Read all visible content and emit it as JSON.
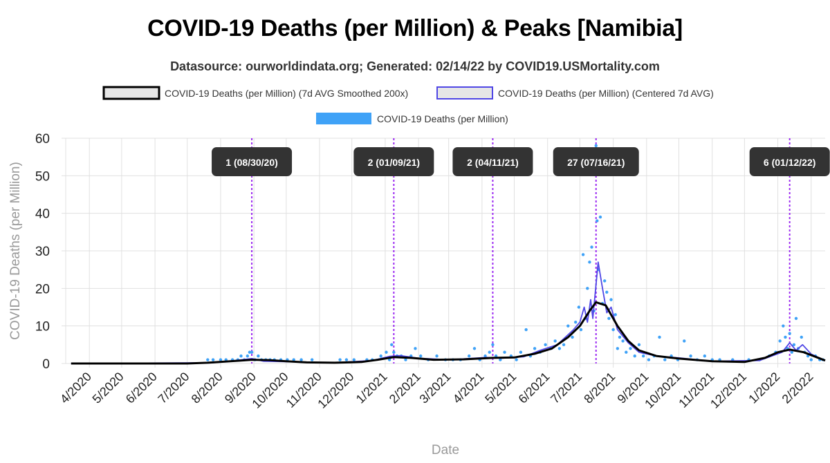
{
  "page": {
    "title": "COVID-19 Deaths (per Million) & Peaks [Namibia]",
    "subtitle": "Datasource: ourworldindata.org; Generated: 02/14/22 by COVID19.USMortality.com"
  },
  "chart_data": {
    "type": "line",
    "ylabel": "COVID-19 Deaths (per Million)",
    "xlabel": "Date",
    "ylim": [
      0,
      60
    ],
    "y_ticks": [
      0,
      10,
      20,
      30,
      40,
      50,
      60
    ],
    "x_range": [
      "2020-03-10",
      "2022-02-14"
    ],
    "x_ticks": [
      {
        "date": "2020-04-01",
        "label": "4/2020"
      },
      {
        "date": "2020-05-01",
        "label": "5/2020"
      },
      {
        "date": "2020-06-01",
        "label": "6/2020"
      },
      {
        "date": "2020-07-01",
        "label": "7/2020"
      },
      {
        "date": "2020-08-01",
        "label": "8/2020"
      },
      {
        "date": "2020-09-01",
        "label": "9/2020"
      },
      {
        "date": "2020-10-01",
        "label": "10/2020"
      },
      {
        "date": "2020-11-01",
        "label": "11/2020"
      },
      {
        "date": "2020-12-01",
        "label": "12/2020"
      },
      {
        "date": "2021-01-01",
        "label": "1/2021"
      },
      {
        "date": "2021-02-01",
        "label": "2/2021"
      },
      {
        "date": "2021-03-01",
        "label": "3/2021"
      },
      {
        "date": "2021-04-01",
        "label": "4/2021"
      },
      {
        "date": "2021-05-01",
        "label": "5/2021"
      },
      {
        "date": "2021-06-01",
        "label": "6/2021"
      },
      {
        "date": "2021-07-01",
        "label": "7/2021"
      },
      {
        "date": "2021-08-01",
        "label": "8/2021"
      },
      {
        "date": "2021-09-01",
        "label": "9/2021"
      },
      {
        "date": "2021-10-01",
        "label": "10/2021"
      },
      {
        "date": "2021-11-01",
        "label": "11/2021"
      },
      {
        "date": "2021-12-01",
        "label": "12/2021"
      },
      {
        "date": "2022-01-01",
        "label": "1/2022"
      },
      {
        "date": "2022-02-01",
        "label": "2/2022"
      }
    ],
    "grid": true,
    "legend_position": "top",
    "series": [
      {
        "name": "COVID-19 Deaths (per Million) (7d AVG Smoothed 200x)",
        "style": "line",
        "color": "#000000",
        "points": [
          [
            "2020-03-15",
            0
          ],
          [
            "2020-07-01",
            0
          ],
          [
            "2020-07-20",
            0.2
          ],
          [
            "2020-08-05",
            0.5
          ],
          [
            "2020-08-20",
            0.8
          ],
          [
            "2020-08-30",
            1.0
          ],
          [
            "2020-09-15",
            0.9
          ],
          [
            "2020-10-01",
            0.6
          ],
          [
            "2020-10-20",
            0.3
          ],
          [
            "2020-11-15",
            0.2
          ],
          [
            "2020-12-10",
            0.4
          ],
          [
            "2020-12-25",
            1.0
          ],
          [
            "2021-01-09",
            1.7
          ],
          [
            "2021-01-25",
            1.5
          ],
          [
            "2021-02-15",
            1.0
          ],
          [
            "2021-03-15",
            1.1
          ],
          [
            "2021-04-11",
            1.5
          ],
          [
            "2021-05-01",
            1.6
          ],
          [
            "2021-05-20",
            2.6
          ],
          [
            "2021-06-05",
            4.0
          ],
          [
            "2021-06-20",
            7.0
          ],
          [
            "2021-07-01",
            10.0
          ],
          [
            "2021-07-10",
            14.0
          ],
          [
            "2021-07-16",
            16.3
          ],
          [
            "2021-07-25",
            15.5
          ],
          [
            "2021-08-05",
            10.0
          ],
          [
            "2021-08-15",
            6.0
          ],
          [
            "2021-08-25",
            3.5
          ],
          [
            "2021-09-10",
            2.0
          ],
          [
            "2021-10-01",
            1.3
          ],
          [
            "2021-11-01",
            0.6
          ],
          [
            "2021-12-01",
            0.4
          ],
          [
            "2021-12-20",
            1.5
          ],
          [
            "2022-01-01",
            3.0
          ],
          [
            "2022-01-12",
            3.7
          ],
          [
            "2022-01-25",
            3.0
          ],
          [
            "2022-02-14",
            0.8
          ]
        ]
      },
      {
        "name": "COVID-19 Deaths (per Million) (Centered 7d AVG)",
        "style": "line",
        "color": "#4f46e5",
        "points": [
          [
            "2020-03-15",
            0
          ],
          [
            "2020-07-25",
            0.2
          ],
          [
            "2020-08-15",
            0.8
          ],
          [
            "2020-08-30",
            1.3
          ],
          [
            "2020-09-10",
            0.6
          ],
          [
            "2020-10-01",
            0.5
          ],
          [
            "2020-11-15",
            0.2
          ],
          [
            "2020-12-20",
            0.8
          ],
          [
            "2021-01-05",
            1.9
          ],
          [
            "2021-01-15",
            2.1
          ],
          [
            "2021-02-01",
            1.4
          ],
          [
            "2021-03-01",
            1.0
          ],
          [
            "2021-04-05",
            1.6
          ],
          [
            "2021-04-20",
            1.4
          ],
          [
            "2021-05-10",
            1.8
          ],
          [
            "2021-05-25",
            3.5
          ],
          [
            "2021-06-10",
            5.0
          ],
          [
            "2021-06-25",
            9.0
          ],
          [
            "2021-07-01",
            11.0
          ],
          [
            "2021-07-05",
            15.0
          ],
          [
            "2021-07-08",
            11.0
          ],
          [
            "2021-07-11",
            17.0
          ],
          [
            "2021-07-13",
            12.0
          ],
          [
            "2021-07-18",
            27.0
          ],
          [
            "2021-07-22",
            20.0
          ],
          [
            "2021-07-26",
            13.5
          ],
          [
            "2021-07-30",
            15.0
          ],
          [
            "2021-08-05",
            9.0
          ],
          [
            "2021-08-15",
            5.5
          ],
          [
            "2021-08-25",
            3.0
          ],
          [
            "2021-09-10",
            2.0
          ],
          [
            "2021-10-01",
            1.5
          ],
          [
            "2021-11-01",
            0.6
          ],
          [
            "2021-12-15",
            0.8
          ],
          [
            "2022-01-05",
            3.0
          ],
          [
            "2022-01-12",
            5.5
          ],
          [
            "2022-01-18",
            3.5
          ],
          [
            "2022-01-24",
            5.0
          ],
          [
            "2022-02-01",
            2.5
          ],
          [
            "2022-02-14",
            0.8
          ]
        ]
      },
      {
        "name": "COVID-19 Deaths (per Million)",
        "style": "scatter",
        "color": "#3fa2f7",
        "points": [
          [
            "2020-07-20",
            1
          ],
          [
            "2020-07-25",
            1
          ],
          [
            "2020-08-01",
            1
          ],
          [
            "2020-08-06",
            1
          ],
          [
            "2020-08-12",
            1
          ],
          [
            "2020-08-17",
            1
          ],
          [
            "2020-08-20",
            2
          ],
          [
            "2020-08-23",
            1
          ],
          [
            "2020-08-26",
            2
          ],
          [
            "2020-08-28",
            3
          ],
          [
            "2020-08-30",
            3
          ],
          [
            "2020-09-02",
            1
          ],
          [
            "2020-09-05",
            2
          ],
          [
            "2020-09-08",
            1
          ],
          [
            "2020-09-12",
            1
          ],
          [
            "2020-09-16",
            1
          ],
          [
            "2020-09-20",
            1
          ],
          [
            "2020-09-26",
            1
          ],
          [
            "2020-10-02",
            1
          ],
          [
            "2020-10-08",
            1
          ],
          [
            "2020-10-15",
            1
          ],
          [
            "2020-10-25",
            1
          ],
          [
            "2020-11-20",
            1
          ],
          [
            "2020-11-26",
            1
          ],
          [
            "2020-12-03",
            1
          ],
          [
            "2020-12-15",
            1
          ],
          [
            "2020-12-20",
            1
          ],
          [
            "2020-12-28",
            2
          ],
          [
            "2021-01-02",
            3
          ],
          [
            "2021-01-05",
            1
          ],
          [
            "2021-01-07",
            5
          ],
          [
            "2021-01-09",
            3
          ],
          [
            "2021-01-12",
            2
          ],
          [
            "2021-01-16",
            2
          ],
          [
            "2021-01-20",
            1
          ],
          [
            "2021-01-25",
            2
          ],
          [
            "2021-01-29",
            4
          ],
          [
            "2021-02-03",
            2
          ],
          [
            "2021-02-10",
            1
          ],
          [
            "2021-02-18",
            2
          ],
          [
            "2021-02-26",
            1
          ],
          [
            "2021-03-05",
            1
          ],
          [
            "2021-03-12",
            1
          ],
          [
            "2021-03-20",
            2
          ],
          [
            "2021-03-25",
            4
          ],
          [
            "2021-03-30",
            1
          ],
          [
            "2021-04-04",
            2
          ],
          [
            "2021-04-08",
            3
          ],
          [
            "2021-04-11",
            5
          ],
          [
            "2021-04-14",
            2
          ],
          [
            "2021-04-18",
            1
          ],
          [
            "2021-04-22",
            3
          ],
          [
            "2021-04-28",
            2
          ],
          [
            "2021-05-03",
            1
          ],
          [
            "2021-05-07",
            3
          ],
          [
            "2021-05-12",
            9
          ],
          [
            "2021-05-16",
            2
          ],
          [
            "2021-05-20",
            4
          ],
          [
            "2021-05-25",
            3
          ],
          [
            "2021-05-30",
            5
          ],
          [
            "2021-06-04",
            4
          ],
          [
            "2021-06-08",
            6
          ],
          [
            "2021-06-12",
            4
          ],
          [
            "2021-06-16",
            5
          ],
          [
            "2021-06-20",
            10
          ],
          [
            "2021-06-24",
            7
          ],
          [
            "2021-06-27",
            11
          ],
          [
            "2021-06-30",
            15
          ],
          [
            "2021-07-02",
            9
          ],
          [
            "2021-07-04",
            29
          ],
          [
            "2021-07-06",
            12
          ],
          [
            "2021-07-08",
            20
          ],
          [
            "2021-07-10",
            27
          ],
          [
            "2021-07-12",
            31
          ],
          [
            "2021-07-14",
            14
          ],
          [
            "2021-07-16",
            58
          ],
          [
            "2021-07-17",
            38
          ],
          [
            "2021-07-18",
            25
          ],
          [
            "2021-07-20",
            39
          ],
          [
            "2021-07-22",
            16
          ],
          [
            "2021-07-24",
            22
          ],
          [
            "2021-07-26",
            19
          ],
          [
            "2021-07-28",
            12
          ],
          [
            "2021-07-30",
            17
          ],
          [
            "2021-08-01",
            9
          ],
          [
            "2021-08-03",
            13
          ],
          [
            "2021-08-05",
            4
          ],
          [
            "2021-08-07",
            7
          ],
          [
            "2021-08-10",
            6
          ],
          [
            "2021-08-13",
            3
          ],
          [
            "2021-08-17",
            4
          ],
          [
            "2021-08-21",
            2
          ],
          [
            "2021-08-25",
            5
          ],
          [
            "2021-08-29",
            2
          ],
          [
            "2021-09-03",
            1
          ],
          [
            "2021-09-08",
            2
          ],
          [
            "2021-09-13",
            7
          ],
          [
            "2021-09-18",
            1
          ],
          [
            "2021-09-24",
            2
          ],
          [
            "2021-09-30",
            1
          ],
          [
            "2021-10-06",
            6
          ],
          [
            "2021-10-12",
            2
          ],
          [
            "2021-10-18",
            1
          ],
          [
            "2021-10-25",
            2
          ],
          [
            "2021-11-01",
            1
          ],
          [
            "2021-11-08",
            1
          ],
          [
            "2021-11-20",
            1
          ],
          [
            "2021-12-05",
            1
          ],
          [
            "2021-12-15",
            1
          ],
          [
            "2021-12-24",
            2
          ],
          [
            "2021-12-30",
            3
          ],
          [
            "2022-01-03",
            6
          ],
          [
            "2022-01-06",
            10
          ],
          [
            "2022-01-08",
            7
          ],
          [
            "2022-01-10",
            4
          ],
          [
            "2022-01-12",
            8
          ],
          [
            "2022-01-14",
            3
          ],
          [
            "2022-01-16",
            5
          ],
          [
            "2022-01-18",
            12
          ],
          [
            "2022-01-20",
            4
          ],
          [
            "2022-01-23",
            7
          ],
          [
            "2022-01-26",
            3
          ],
          [
            "2022-01-29",
            2
          ],
          [
            "2022-02-01",
            1
          ],
          [
            "2022-02-05",
            2
          ],
          [
            "2022-02-09",
            1
          ],
          [
            "2022-02-12",
            1
          ]
        ]
      }
    ],
    "peaks": [
      {
        "date": "2020-08-30",
        "label": "1 (08/30/20)"
      },
      {
        "date": "2021-01-09",
        "label": "2 (01/09/21)"
      },
      {
        "date": "2021-04-11",
        "label": "2 (04/11/21)"
      },
      {
        "date": "2021-07-16",
        "label": "27 (07/16/21)"
      },
      {
        "date": "2022-01-12",
        "label": "6 (01/12/22)"
      }
    ]
  }
}
